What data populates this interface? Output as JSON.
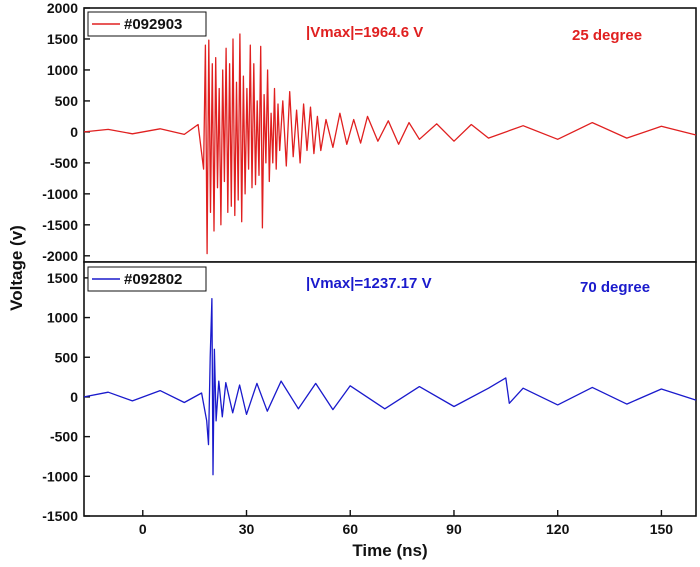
{
  "chart_data": [
    {
      "type": "line",
      "panel": "top",
      "legend_label": "#092903",
      "annotation_vmax": "|Vmax|=1964.6 V",
      "annotation_angle": "25 degree",
      "color": "#e02020",
      "xlim": [
        -17,
        160
      ],
      "ylim": [
        -2100,
        2000
      ],
      "yticks": [
        -2000,
        -1500,
        -1000,
        -500,
        0,
        500,
        1000,
        1500,
        2000
      ],
      "ytick_labels": [
        "-2000",
        "-1500",
        "-1000",
        "-500",
        "0",
        "500",
        "1000",
        "1500",
        "2000"
      ],
      "series": [
        {
          "x": [
            -17,
            -10,
            -3,
            5,
            12,
            16,
            17.6,
            18.1,
            18.6,
            19.1,
            19.6,
            20.1,
            20.6,
            21.1,
            21.6,
            22.1,
            22.6,
            23.1,
            23.6,
            24.1,
            24.6,
            25.1,
            25.6,
            26.1,
            26.6,
            27.1,
            27.6,
            28.1,
            28.6,
            29.1,
            29.6,
            30.1,
            30.6,
            31.1,
            31.6,
            32.1,
            32.6,
            33.1,
            33.6,
            34.1,
            34.6,
            35.1,
            35.6,
            36.1,
            36.6,
            37.1,
            37.6,
            38.1,
            38.6,
            39.1,
            39.6,
            40.5,
            41.5,
            42.5,
            43.5,
            44.5,
            45.5,
            46.5,
            47.5,
            48.5,
            49.5,
            50.5,
            51.5,
            53,
            55,
            57,
            59,
            61,
            63,
            65,
            68,
            71,
            74,
            77,
            80,
            85,
            90,
            95,
            100,
            110,
            120,
            130,
            140,
            150,
            160
          ],
          "y": [
            0,
            40,
            -30,
            50,
            -40,
            120,
            -600,
            1400,
            -1964.6,
            1480,
            -1300,
            1100,
            -1600,
            1200,
            -900,
            700,
            -1500,
            1000,
            -800,
            1350,
            -1300,
            1100,
            -1200,
            1500,
            -1350,
            800,
            -1100,
            1580,
            -1450,
            900,
            -1000,
            700,
            -600,
            1400,
            -900,
            1100,
            -850,
            500,
            -700,
            1380,
            -1550,
            600,
            -500,
            1000,
            -800,
            300,
            -500,
            700,
            -600,
            450,
            -300,
            500,
            -550,
            650,
            -400,
            350,
            -500,
            450,
            -300,
            400,
            -350,
            250,
            -300,
            200,
            -250,
            300,
            -200,
            200,
            -180,
            250,
            -150,
            180,
            -200,
            150,
            -120,
            130,
            -150,
            120,
            -100,
            100,
            -120,
            150,
            -100,
            90,
            -50
          ]
        }
      ]
    },
    {
      "type": "line",
      "panel": "bottom",
      "legend_label": "#092802",
      "annotation_vmax": "|Vmax|=1237.17 V",
      "annotation_angle": "70 degree",
      "color": "#1a1acc",
      "xlim": [
        -17,
        160
      ],
      "ylim": [
        -1500,
        1700
      ],
      "yticks": [
        -1500,
        -1000,
        -500,
        0,
        500,
        1000,
        1500
      ],
      "ytick_labels": [
        "-1500",
        "-1000",
        "-500",
        "0",
        "500",
        "1000",
        "1500"
      ],
      "xticks": [
        0,
        30,
        60,
        90,
        120,
        150
      ],
      "xtick_labels": [
        "0",
        "30",
        "60",
        "90",
        "120",
        "150"
      ],
      "series": [
        {
          "x": [
            -17,
            -10,
            -3,
            5,
            12,
            17,
            18.5,
            19,
            19.5,
            20,
            20.3,
            20.7,
            21.2,
            22,
            23,
            24,
            26,
            28,
            30,
            33,
            36,
            40,
            45,
            50,
            55,
            60,
            70,
            80,
            90,
            100,
            105,
            106,
            110,
            120,
            130,
            140,
            150,
            160
          ],
          "y": [
            0,
            60,
            -50,
            80,
            -70,
            50,
            -300,
            -600,
            500,
            1237.17,
            -980,
            600,
            -300,
            200,
            -250,
            180,
            -200,
            150,
            -220,
            170,
            -180,
            200,
            -150,
            170,
            -160,
            140,
            -150,
            130,
            -120,
            110,
            240,
            -80,
            110,
            -100,
            120,
            -90,
            100,
            -40
          ]
        }
      ]
    }
  ],
  "axes": {
    "ylabel": "Voltage (v)",
    "xlabel": "Time (ns)"
  }
}
